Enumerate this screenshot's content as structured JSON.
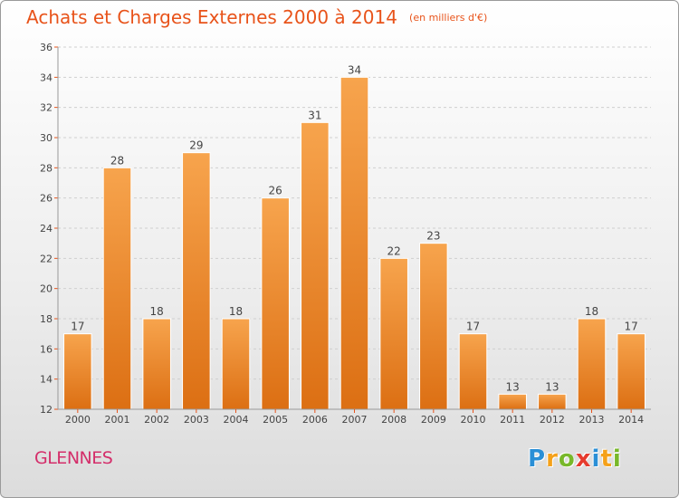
{
  "title": "Achats et Charges Externes 2000 à 2014",
  "subtitle": "(en milliers d'€)",
  "place": "GLENNES",
  "logo": {
    "text": "Proxiti",
    "letters": [
      {
        "ch": "P",
        "color": "#2a8fd6"
      },
      {
        "ch": "r",
        "color": "#f5a11a"
      },
      {
        "ch": "o",
        "color": "#78b82a"
      },
      {
        "ch": "x",
        "color": "#e63b2e"
      },
      {
        "ch": "i",
        "color": "#2a8fd6"
      },
      {
        "ch": "t",
        "color": "#f5a11a"
      },
      {
        "ch": "i",
        "color": "#78b82a"
      }
    ]
  },
  "colors": {
    "bar_light": "#f7a44d",
    "bar_dark": "#dc6f13",
    "title": "#e8531a",
    "place": "#d42e6a",
    "axis_tick": "#e8531a"
  },
  "chart_data": {
    "type": "bar",
    "categories": [
      "2000",
      "2001",
      "2002",
      "2003",
      "2004",
      "2005",
      "2006",
      "2007",
      "2008",
      "2009",
      "2010",
      "2011",
      "2012",
      "2013",
      "2014"
    ],
    "values": [
      17,
      28,
      18,
      29,
      18,
      26,
      31,
      34,
      22,
      23,
      17,
      13,
      13,
      18,
      17
    ],
    "ylim": [
      12,
      36
    ],
    "yticks": [
      12,
      14,
      16,
      18,
      20,
      22,
      24,
      26,
      28,
      30,
      32,
      34,
      36
    ],
    "grid": true,
    "data_labels": true
  }
}
